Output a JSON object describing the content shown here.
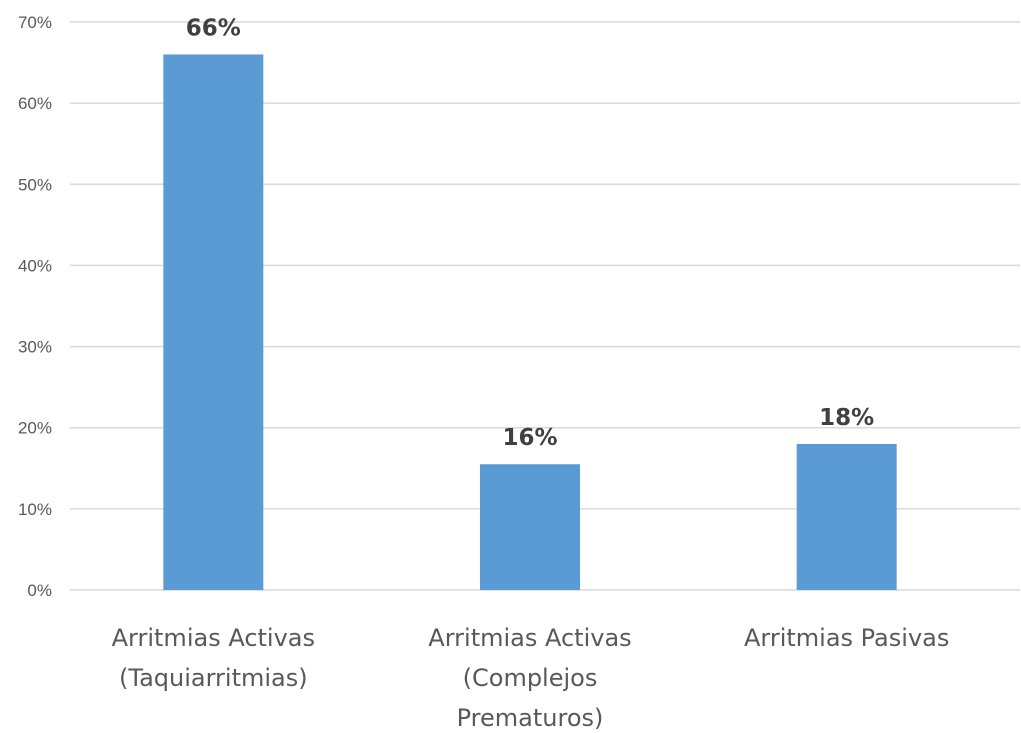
{
  "chart_data": {
    "type": "bar",
    "categories": [
      [
        "Arritmias Activas",
        "(Taquiarritmias)"
      ],
      [
        "Arritmias Activas",
        "(Complejos",
        "Prematuros)"
      ],
      [
        "Arritmias Pasivas"
      ]
    ],
    "values": [
      66,
      15.5,
      18
    ],
    "data_labels": [
      "66%",
      "16%",
      "18%"
    ],
    "ylim": [
      0,
      70
    ],
    "yticks": [
      0,
      10,
      20,
      30,
      40,
      50,
      60,
      70
    ],
    "ytick_labels": [
      "0%",
      "10%",
      "20%",
      "30%",
      "40%",
      "50%",
      "60%",
      "70%"
    ],
    "grid": true,
    "legend": "none",
    "bar_color": "#5b9bd5"
  }
}
